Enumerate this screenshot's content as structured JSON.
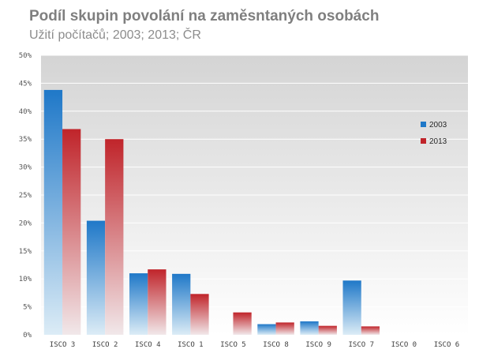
{
  "title": "Podíl skupin povolání na zaměsntaných osobách",
  "subtitle": "Užití počítačů; 2003; 2013; ČR",
  "colors": {
    "series_2003_top": "#1f78c8",
    "series_2003_bottom": "#dcecf6",
    "series_2013_top": "#c0242a",
    "series_2013_bottom": "#f1e8ea",
    "plot_bg_top": "#d4d4d4",
    "plot_bg_bottom": "#ffffff"
  },
  "chart_data": {
    "type": "bar",
    "title": "Podíl skupin povolání na zaměsntaných osobách",
    "subtitle": "Užití počítačů; 2003; 2013; ČR",
    "categories": [
      "ISCO 3",
      "ISCO 2",
      "ISCO 4",
      "ISCO 1",
      "ISCO 5",
      "ISCO 8",
      "ISCO 9",
      "ISCO 7",
      "ISCO 0",
      "ISCO 6"
    ],
    "series": [
      {
        "name": "2003",
        "values": [
          43.8,
          20.4,
          11.0,
          10.9,
          0,
          1.9,
          2.4,
          9.7,
          0,
          0
        ]
      },
      {
        "name": "2013",
        "values": [
          36.8,
          35.0,
          11.7,
          7.3,
          4.0,
          2.2,
          1.6,
          1.5,
          0,
          0
        ]
      }
    ],
    "ylim": [
      0,
      50
    ],
    "yticks": [
      "0%",
      "5%",
      "10%",
      "15%",
      "20%",
      "25%",
      "30%",
      "35%",
      "40%",
      "45%",
      "50%"
    ],
    "ytick_values": [
      0,
      5,
      10,
      15,
      20,
      25,
      30,
      35,
      40,
      45,
      50
    ],
    "grid": true,
    "legend_position": "right"
  }
}
